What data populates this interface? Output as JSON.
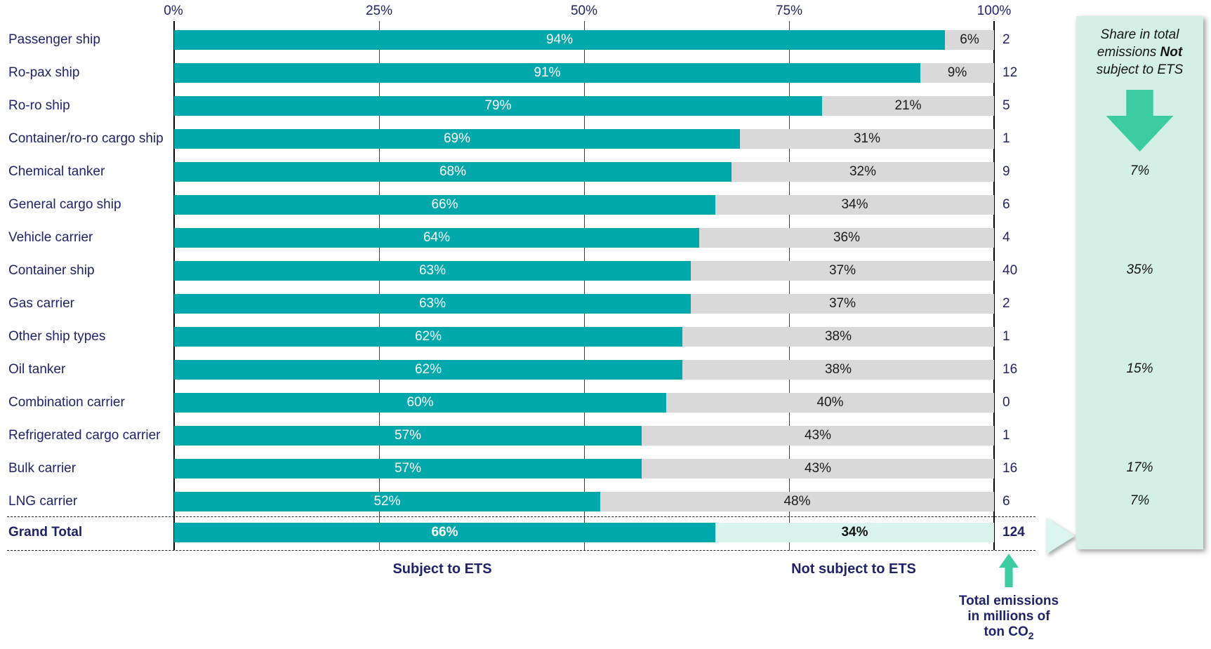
{
  "chart_data": {
    "type": "bar",
    "orientation": "horizontal-stacked",
    "title": "",
    "xlabel": "",
    "ylabel": "",
    "x_ticks": [
      "0%",
      "25%",
      "50%",
      "75%",
      "100%"
    ],
    "x_range": [
      0,
      100
    ],
    "grid": true,
    "legend_position": "bottom",
    "categories": [
      "Passenger ship",
      "Ro-pax ship",
      "Ro-ro ship",
      "Container/ro-ro cargo ship",
      "Chemical tanker",
      "General cargo ship",
      "Vehicle carrier",
      "Container ship",
      "Gas carrier",
      "Other ship types",
      "Oil tanker",
      "Combination carrier",
      "Refrigerated cargo carrier",
      "Bulk carrier",
      "LNG carrier"
    ],
    "series": [
      {
        "name": "Subject to ETS",
        "values": [
          94,
          91,
          79,
          69,
          68,
          66,
          64,
          63,
          63,
          62,
          62,
          60,
          57,
          57,
          52
        ]
      },
      {
        "name": "Not subject to ETS",
        "values": [
          6,
          9,
          21,
          31,
          32,
          34,
          36,
          37,
          37,
          38,
          38,
          40,
          43,
          43,
          48
        ]
      }
    ],
    "totals_mt_co2": [
      2,
      12,
      5,
      1,
      9,
      6,
      4,
      40,
      2,
      1,
      16,
      0,
      1,
      16,
      6
    ],
    "rows": [
      {
        "label": "Passenger ship",
        "subject": 94,
        "not_subject": 6,
        "subject_label": "94%",
        "not_subject_label": "6%",
        "total_label": "2"
      },
      {
        "label": "Ro-pax ship",
        "subject": 91,
        "not_subject": 9,
        "subject_label": "91%",
        "not_subject_label": "9%",
        "total_label": "12"
      },
      {
        "label": "Ro-ro ship",
        "subject": 79,
        "not_subject": 21,
        "subject_label": "79%",
        "not_subject_label": "21%",
        "total_label": "5"
      },
      {
        "label": "Container/ro-ro cargo ship",
        "subject": 69,
        "not_subject": 31,
        "subject_label": "69%",
        "not_subject_label": "31%",
        "total_label": "1"
      },
      {
        "label": "Chemical tanker",
        "subject": 68,
        "not_subject": 32,
        "subject_label": "68%",
        "not_subject_label": "32%",
        "total_label": "9"
      },
      {
        "label": "General cargo ship",
        "subject": 66,
        "not_subject": 34,
        "subject_label": "66%",
        "not_subject_label": "34%",
        "total_label": "6"
      },
      {
        "label": "Vehicle carrier",
        "subject": 64,
        "not_subject": 36,
        "subject_label": "64%",
        "not_subject_label": "36%",
        "total_label": "4"
      },
      {
        "label": "Container ship",
        "subject": 63,
        "not_subject": 37,
        "subject_label": "63%",
        "not_subject_label": "37%",
        "total_label": "40"
      },
      {
        "label": "Gas carrier",
        "subject": 63,
        "not_subject": 37,
        "subject_label": "63%",
        "not_subject_label": "37%",
        "total_label": "2"
      },
      {
        "label": "Other ship types",
        "subject": 62,
        "not_subject": 38,
        "subject_label": "62%",
        "not_subject_label": "38%",
        "total_label": "1"
      },
      {
        "label": "Oil tanker",
        "subject": 62,
        "not_subject": 38,
        "subject_label": "62%",
        "not_subject_label": "38%",
        "total_label": "16"
      },
      {
        "label": "Combination carrier",
        "subject": 60,
        "not_subject": 40,
        "subject_label": "60%",
        "not_subject_label": "40%",
        "total_label": "0"
      },
      {
        "label": "Refrigerated cargo carrier",
        "subject": 57,
        "not_subject": 43,
        "subject_label": "57%",
        "not_subject_label": "43%",
        "total_label": "1"
      },
      {
        "label": "Bulk carrier",
        "subject": 57,
        "not_subject": 43,
        "subject_label": "57%",
        "not_subject_label": "43%",
        "total_label": "16"
      },
      {
        "label": "LNG carrier",
        "subject": 52,
        "not_subject": 48,
        "subject_label": "52%",
        "not_subject_label": "48%",
        "total_label": "6"
      }
    ],
    "grand_total": {
      "label": "Grand Total",
      "subject": 66,
      "not_subject": 34,
      "subject_label": "66%",
      "not_subject_label": "34%",
      "total_label": "124"
    }
  },
  "axis": {
    "ticks": [
      "0%",
      "25%",
      "50%",
      "75%",
      "100%"
    ]
  },
  "legend": {
    "subject": "Subject to ETS",
    "not_subject": "Not subject to ETS"
  },
  "total_note": {
    "line1": "Total emissions",
    "line2": "in millions of",
    "line3_main": "ton CO",
    "line3_sub": "2"
  },
  "side_panel": {
    "title_pre": "Share in total emissions ",
    "title_bold": "Not",
    "title_post": " subject to ETS",
    "values": [
      {
        "row": 4,
        "label": "7%"
      },
      {
        "row": 7,
        "label": "35%"
      },
      {
        "row": 10,
        "label": "15%"
      },
      {
        "row": 13,
        "label": "17%"
      },
      {
        "row": 14,
        "label": "7%"
      }
    ]
  },
  "colors": {
    "subject_bar": "#00A8AC",
    "not_subject_bar": "#D9D9D9",
    "grand_total_not_subject": "#D8F4EC",
    "panel_background": "#D4F0E6",
    "arrow_green": "#3DCBA2",
    "text_navy": "#1F2368"
  }
}
